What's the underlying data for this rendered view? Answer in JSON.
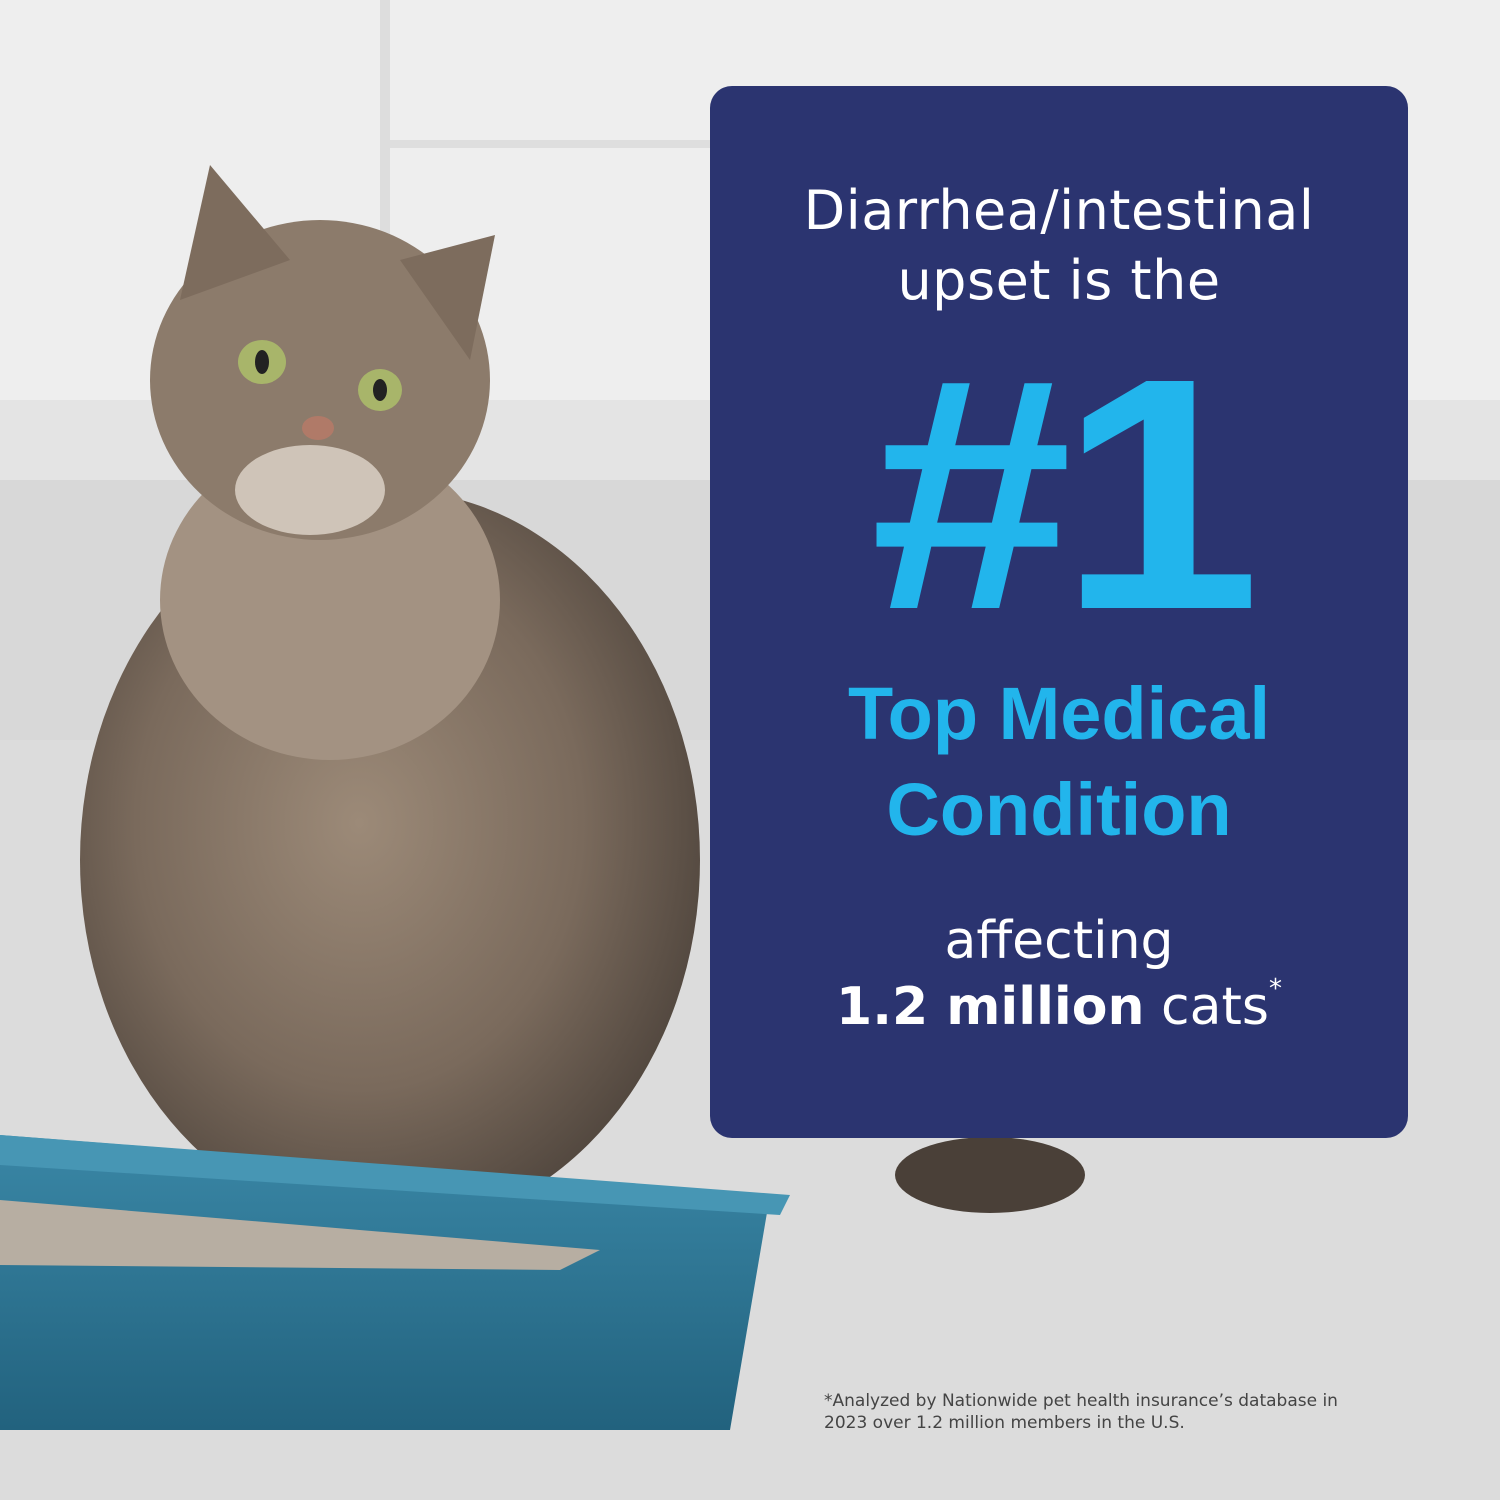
{
  "colors": {
    "panel": "#2b3470",
    "accent": "#22b5ec",
    "text": "#ffffff",
    "litter_box": "#2f7896"
  },
  "panel": {
    "intro_line1": "Diarrhea/intestinal",
    "intro_line2": "upset is the",
    "rank": "#1",
    "condition_line1": "Top Medical",
    "condition_line2": "Condition",
    "affecting": "affecting",
    "count": "1.2 million",
    "subject": " cats",
    "asterisk": "*"
  },
  "footnote": {
    "line1": "*Analyzed by Nationwide pet health insurance’s database in",
    "line2": "2023 over 1.2 million members in the U.S."
  }
}
